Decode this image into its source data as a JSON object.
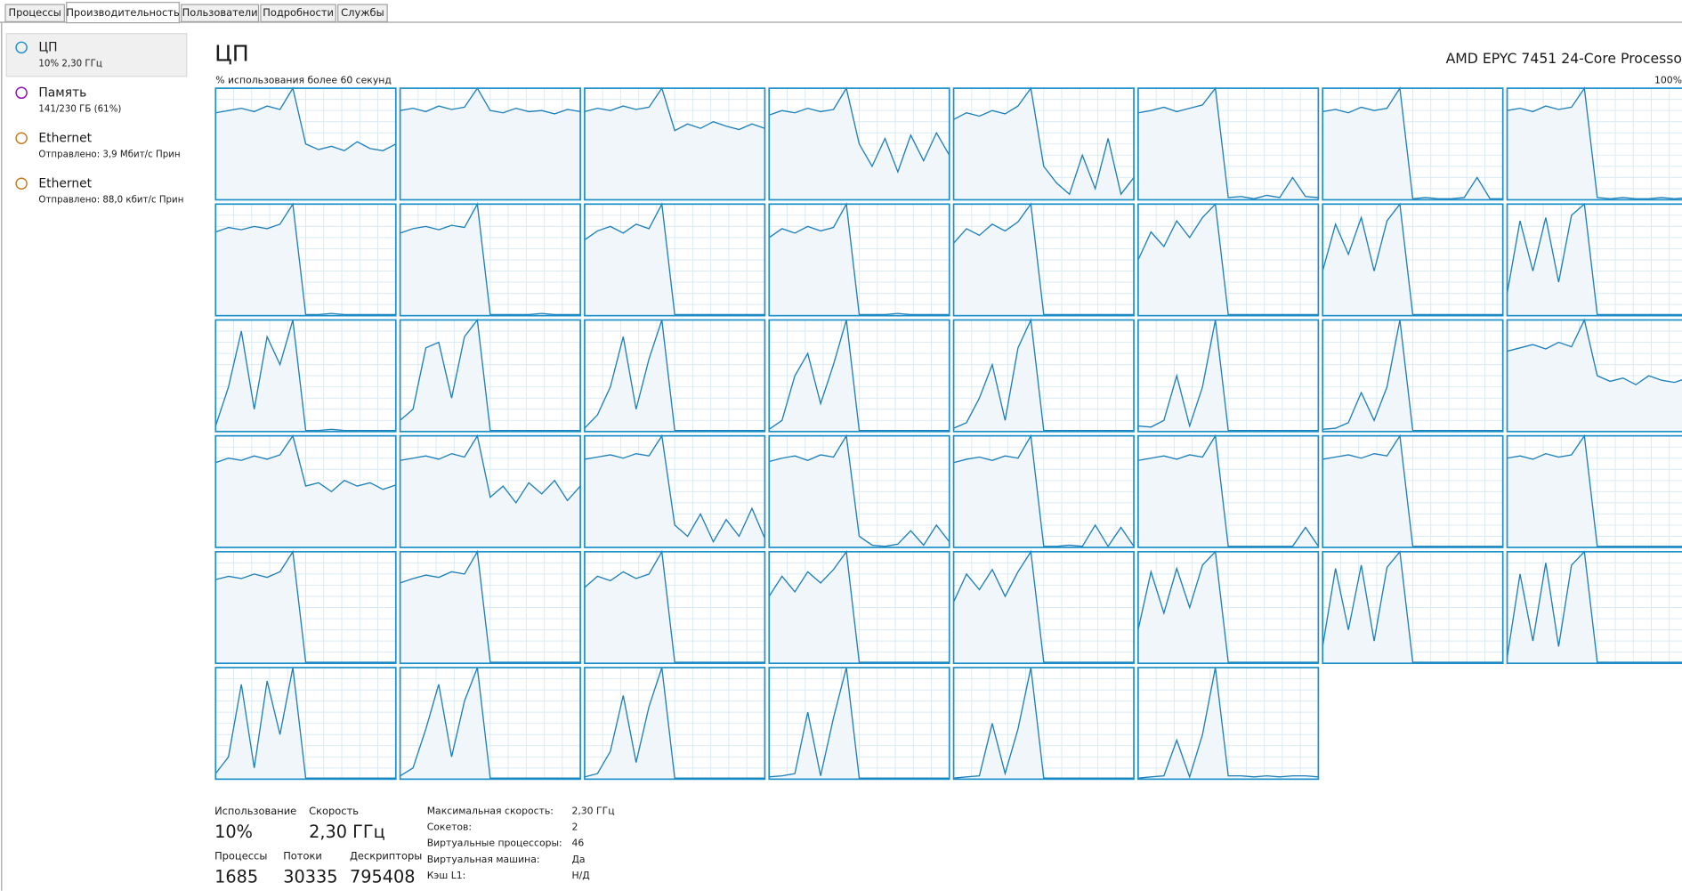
{
  "tabs": [
    "Процессы",
    "Производительность",
    "Пользователи",
    "Подробности",
    "Службы"
  ],
  "sidebar": [
    {
      "title": "ЦП",
      "detail": "10% 2,30 ГГц"
    },
    {
      "title": "Память",
      "detail": "141/230 ГБ (61%)"
    },
    {
      "title": "Ethernet",
      "detail": "Отправлено: 3,9 Мбит/с Прин"
    },
    {
      "title": "Ethernet",
      "detail": "Отправлено: 88,0 кбит/с Прин"
    }
  ],
  "header": {
    "title": "ЦП",
    "processor": "AMD EPYC 7451 24-Core Processo",
    "caption": "% использования более 60 секунд",
    "max_label": "100%"
  },
  "cpu_graphs": {
    "ylim": [
      0,
      100
    ],
    "series": [
      {
        "values": [
          78,
          80,
          82,
          79,
          84,
          81,
          100,
          50,
          45,
          48,
          44,
          52,
          46,
          44,
          50
        ]
      },
      {
        "values": [
          80,
          82,
          79,
          84,
          81,
          83,
          100,
          80,
          78,
          82,
          79,
          80,
          77,
          81,
          79
        ]
      },
      {
        "values": [
          79,
          82,
          80,
          84,
          81,
          83,
          100,
          62,
          68,
          64,
          70,
          66,
          63,
          68,
          64
        ]
      },
      {
        "values": [
          76,
          80,
          78,
          82,
          79,
          81,
          100,
          50,
          30,
          55,
          25,
          58,
          35,
          60,
          40
        ]
      },
      {
        "values": [
          72,
          78,
          75,
          80,
          77,
          84,
          100,
          30,
          15,
          5,
          40,
          10,
          55,
          5,
          20
        ]
      },
      {
        "values": [
          78,
          80,
          83,
          79,
          82,
          85,
          100,
          2,
          3,
          1,
          4,
          2,
          20,
          3,
          2
        ]
      },
      {
        "values": [
          79,
          81,
          78,
          83,
          80,
          82,
          100,
          1,
          2,
          1,
          1,
          2,
          20,
          1,
          1
        ]
      },
      {
        "values": [
          80,
          82,
          79,
          84,
          81,
          83,
          100,
          2,
          1,
          2,
          1,
          1,
          2,
          1,
          2
        ]
      },
      {
        "values": [
          75,
          79,
          77,
          80,
          78,
          82,
          100,
          1,
          1,
          2,
          1,
          1,
          1,
          1,
          1
        ]
      },
      {
        "values": [
          74,
          78,
          80,
          77,
          81,
          79,
          100,
          1,
          1,
          1,
          1,
          2,
          1,
          1,
          1
        ]
      },
      {
        "values": [
          68,
          76,
          80,
          74,
          82,
          78,
          100,
          1,
          1,
          1,
          1,
          1,
          1,
          1,
          1
        ]
      },
      {
        "values": [
          70,
          78,
          74,
          80,
          76,
          79,
          100,
          1,
          1,
          1,
          2,
          1,
          1,
          1,
          1
        ]
      },
      {
        "values": [
          65,
          78,
          72,
          82,
          76,
          84,
          100,
          1,
          1,
          1,
          1,
          1,
          1,
          1,
          1
        ]
      },
      {
        "values": [
          50,
          75,
          62,
          85,
          70,
          88,
          100,
          1,
          1,
          1,
          1,
          1,
          1,
          1,
          1
        ]
      },
      {
        "values": [
          40,
          82,
          55,
          88,
          40,
          85,
          100,
          1,
          1,
          1,
          1,
          1,
          1,
          1,
          1
        ]
      },
      {
        "values": [
          20,
          85,
          40,
          88,
          30,
          90,
          100,
          1,
          1,
          1,
          1,
          1,
          1,
          1,
          1
        ]
      },
      {
        "values": [
          5,
          40,
          90,
          20,
          85,
          60,
          100,
          1,
          1,
          2,
          1,
          1,
          1,
          1,
          1
        ]
      },
      {
        "values": [
          10,
          20,
          75,
          80,
          30,
          85,
          100,
          1,
          1,
          1,
          1,
          1,
          1,
          1,
          1
        ]
      },
      {
        "values": [
          3,
          15,
          40,
          85,
          20,
          65,
          100,
          1,
          1,
          1,
          1,
          1,
          1,
          1,
          1
        ]
      },
      {
        "values": [
          2,
          10,
          50,
          70,
          25,
          60,
          100,
          1,
          1,
          1,
          1,
          1,
          1,
          1,
          1
        ]
      },
      {
        "values": [
          3,
          8,
          30,
          60,
          10,
          75,
          100,
          1,
          1,
          1,
          1,
          1,
          1,
          1,
          1
        ]
      },
      {
        "values": [
          5,
          4,
          10,
          50,
          5,
          40,
          100,
          1,
          1,
          1,
          1,
          1,
          1,
          1,
          1
        ]
      },
      {
        "values": [
          2,
          3,
          8,
          35,
          10,
          40,
          100,
          1,
          1,
          1,
          1,
          1,
          1,
          1,
          1
        ]
      },
      {
        "values": [
          72,
          75,
          78,
          74,
          80,
          76,
          100,
          50,
          45,
          48,
          42,
          50,
          46,
          44,
          48
        ]
      },
      {
        "values": [
          76,
          80,
          78,
          82,
          79,
          83,
          100,
          55,
          58,
          50,
          60,
          55,
          58,
          52,
          56
        ]
      },
      {
        "values": [
          78,
          80,
          82,
          79,
          84,
          81,
          100,
          45,
          55,
          40,
          58,
          48,
          60,
          42,
          55
        ]
      },
      {
        "values": [
          79,
          81,
          83,
          80,
          84,
          82,
          100,
          20,
          10,
          30,
          5,
          25,
          10,
          35,
          8
        ]
      },
      {
        "values": [
          77,
          80,
          82,
          78,
          83,
          81,
          100,
          10,
          2,
          1,
          3,
          15,
          2,
          20,
          5
        ]
      },
      {
        "values": [
          76,
          79,
          81,
          78,
          82,
          80,
          100,
          1,
          1,
          2,
          1,
          20,
          1,
          18,
          1
        ]
      },
      {
        "values": [
          78,
          80,
          82,
          79,
          83,
          81,
          100,
          1,
          1,
          1,
          1,
          1,
          1,
          18,
          1
        ]
      },
      {
        "values": [
          79,
          81,
          83,
          80,
          84,
          82,
          100,
          1,
          1,
          1,
          1,
          1,
          1,
          1,
          1
        ]
      },
      {
        "values": [
          80,
          82,
          79,
          84,
          81,
          83,
          100,
          1,
          1,
          1,
          1,
          1,
          1,
          1,
          1
        ]
      },
      {
        "values": [
          75,
          78,
          76,
          80,
          77,
          82,
          100,
          1,
          1,
          1,
          1,
          1,
          1,
          1,
          1
        ]
      },
      {
        "values": [
          72,
          76,
          79,
          77,
          82,
          80,
          100,
          1,
          1,
          1,
          1,
          1,
          1,
          1,
          1
        ]
      },
      {
        "values": [
          68,
          78,
          74,
          82,
          76,
          80,
          100,
          1,
          1,
          1,
          1,
          1,
          1,
          1,
          1
        ]
      },
      {
        "values": [
          60,
          78,
          64,
          82,
          72,
          84,
          100,
          1,
          1,
          1,
          1,
          1,
          1,
          1,
          1
        ]
      },
      {
        "values": [
          55,
          80,
          66,
          84,
          60,
          82,
          100,
          1,
          1,
          1,
          1,
          1,
          1,
          1,
          1
        ]
      },
      {
        "values": [
          30,
          82,
          45,
          85,
          50,
          88,
          100,
          1,
          1,
          1,
          1,
          1,
          1,
          1,
          1
        ]
      },
      {
        "values": [
          15,
          85,
          30,
          88,
          20,
          86,
          100,
          1,
          1,
          1,
          1,
          1,
          1,
          1,
          1
        ]
      },
      {
        "values": [
          5,
          80,
          20,
          90,
          15,
          88,
          100,
          1,
          1,
          1,
          1,
          1,
          1,
          1,
          1
        ]
      },
      {
        "values": [
          5,
          20,
          85,
          10,
          88,
          40,
          100,
          1,
          1,
          1,
          1,
          1,
          1,
          1,
          1
        ]
      },
      {
        "values": [
          3,
          10,
          45,
          85,
          20,
          70,
          100,
          1,
          1,
          1,
          1,
          1,
          1,
          1,
          1
        ]
      },
      {
        "values": [
          2,
          5,
          25,
          75,
          15,
          65,
          100,
          1,
          1,
          1,
          1,
          1,
          1,
          1,
          1
        ]
      },
      {
        "values": [
          2,
          3,
          5,
          60,
          3,
          55,
          100,
          1,
          1,
          1,
          1,
          1,
          1,
          1,
          1
        ]
      },
      {
        "values": [
          1,
          2,
          3,
          50,
          5,
          45,
          100,
          1,
          1,
          1,
          1,
          1,
          1,
          1,
          1
        ]
      },
      {
        "values": [
          1,
          2,
          3,
          35,
          2,
          40,
          100,
          3,
          3,
          2,
          3,
          2,
          3,
          3,
          2
        ]
      }
    ]
  },
  "stats": [
    {
      "label": "Использование",
      "value": "10%"
    },
    {
      "label": "Скорость",
      "value": "2,30 ГГц"
    },
    {
      "label": "Процессы",
      "value": "1685"
    },
    {
      "label": "Потоки",
      "value": "30335"
    },
    {
      "label": "Дескрипторы",
      "value": "795408"
    }
  ],
  "specs": [
    {
      "label": "Максимальная скорость:",
      "value": "2,30 ГГц"
    },
    {
      "label": "Сокетов:",
      "value": "2"
    },
    {
      "label": "Виртуальные процессоры:",
      "value": "46"
    },
    {
      "label": "Виртуальная машина:",
      "value": "Да"
    },
    {
      "label": "Кэш L1:",
      "value": "Н/Д"
    }
  ]
}
